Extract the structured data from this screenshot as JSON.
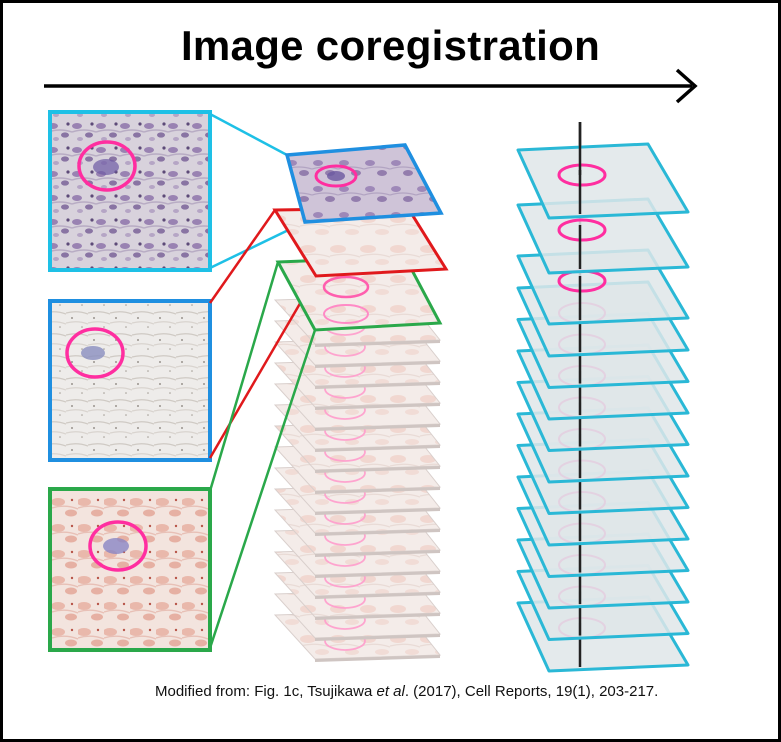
{
  "title": "Image coregistration",
  "caption": {
    "before": "Modified from: Fig. 1c, Tsujikawa ",
    "etal": "et al",
    "after": ". (2017), Cell Reports, 19(1), 203-217."
  },
  "colors": {
    "cyan_box": "#1ec0e6",
    "blue_box": "#1f8fe0",
    "red_box": "#e0191c",
    "green_box": "#2aa84a",
    "marker_circle": "#ff2ea0",
    "slide_edge": "#2ab8d6",
    "slide_fill": "#dfe6e9",
    "axis_line": "#222222"
  },
  "icons": {
    "direction": "right-arrow-icon"
  },
  "insets": [
    {
      "name": "he-stain-inset",
      "stain": "purple"
    },
    {
      "name": "grey-stain-inset",
      "stain": "grey"
    },
    {
      "name": "red-stain-inset",
      "stain": "red"
    }
  ],
  "stack": {
    "tissue_slices": 16,
    "registered_slides": 14
  }
}
